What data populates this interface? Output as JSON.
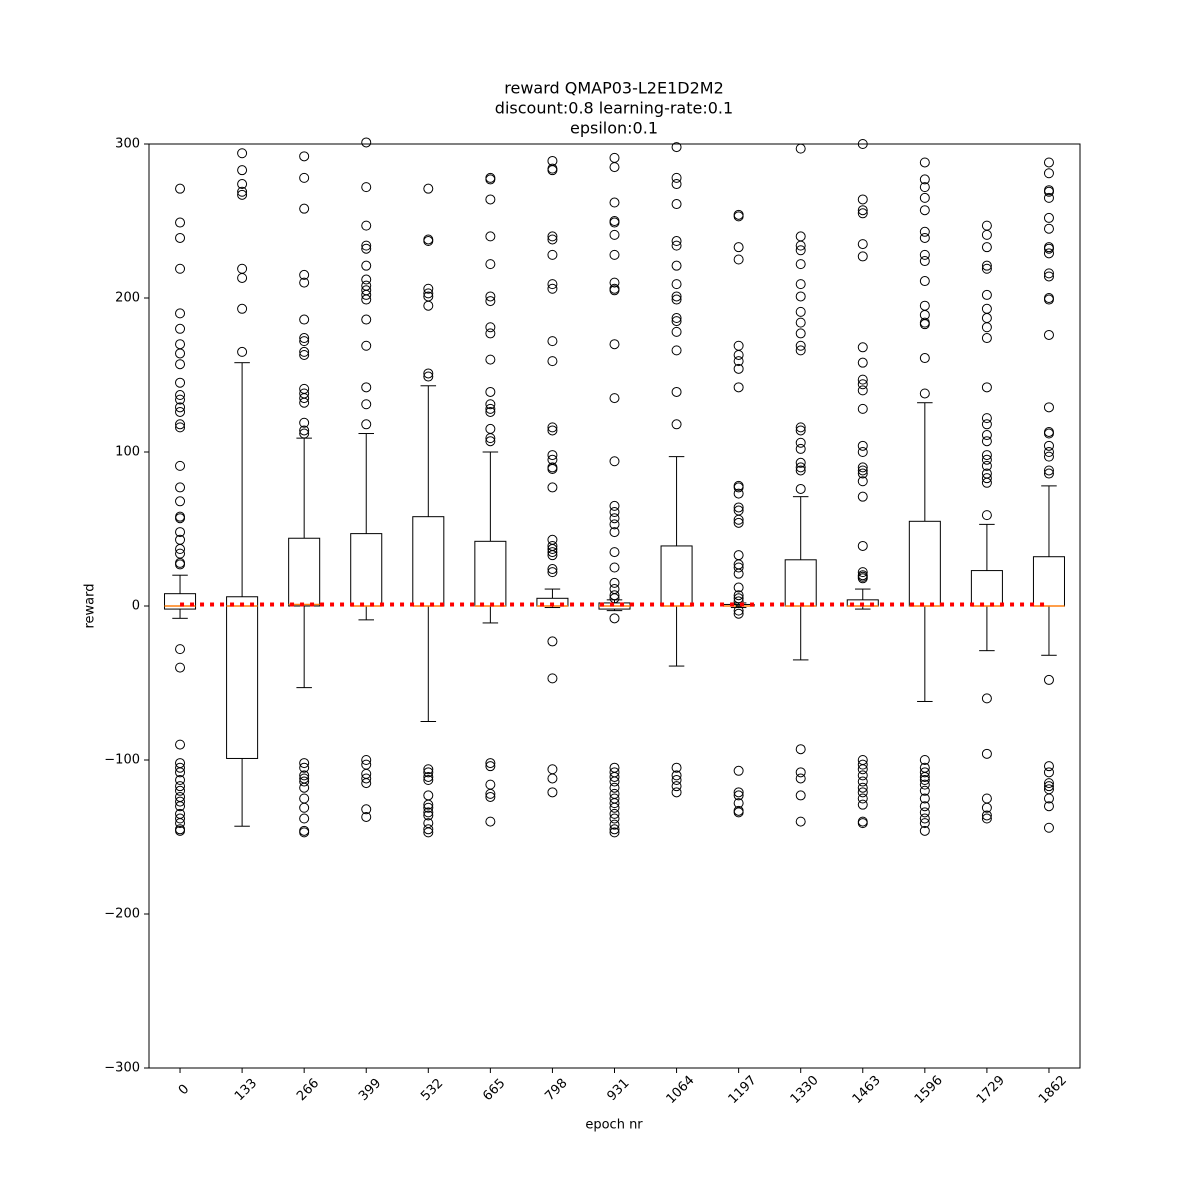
{
  "chart_data": {
    "type": "box",
    "title": [
      "reward QMAP03-L2E1D2M2",
      "discount:0.8 learning-rate:0.1",
      "epsilon:0.1"
    ],
    "x_label": "epoch nr",
    "y_label": "reward",
    "categories": [
      "0",
      "133",
      "266",
      "399",
      "532",
      "665",
      "798",
      "931",
      "1064",
      "1197",
      "1330",
      "1463",
      "1596",
      "1729",
      "1862"
    ],
    "ylim": [
      -300,
      300
    ],
    "yticks": [
      {
        "value": -300,
        "label": "−300"
      },
      {
        "value": -200,
        "label": "−200"
      },
      {
        "value": -100,
        "label": "−100"
      },
      0,
      100,
      200,
      300
    ],
    "box_color": "#000000",
    "median_color": "#ff7f0e",
    "boxes": [
      {
        "whisker_low": -8,
        "q1": -2,
        "median": 0,
        "q3": 8,
        "whisker_high": 20,
        "outliers": [
          271,
          249,
          239,
          219,
          190,
          180,
          170,
          164,
          157,
          145,
          137,
          134,
          129,
          126,
          118,
          116,
          91,
          77,
          68,
          58,
          57,
          48,
          43,
          37,
          34,
          28,
          27,
          -28,
          -40,
          -90,
          -102,
          -105,
          -108,
          -113,
          -117,
          -120,
          -124,
          -127,
          -130,
          -135,
          -138,
          -141,
          -145,
          -146
        ]
      },
      {
        "whisker_low": -143,
        "q1": -99,
        "median": 0,
        "q3": 6,
        "whisker_high": 158,
        "outliers": [
          294,
          283,
          274,
          269,
          267,
          219,
          213,
          193,
          165
        ]
      },
      {
        "whisker_low": -53,
        "q1": 0,
        "median": 1,
        "q3": 44,
        "whisker_high": 109,
        "outliers": [
          292,
          278,
          258,
          215,
          210,
          186,
          174,
          172,
          165,
          163,
          141,
          138,
          135,
          132,
          119,
          114,
          112,
          -102,
          -105,
          -110,
          -112,
          -114,
          -118,
          -125,
          -131,
          -138,
          -146,
          -147
        ]
      },
      {
        "whisker_low": -9,
        "q1": 0,
        "median": 0,
        "q3": 47,
        "whisker_high": 112,
        "outliers": [
          301,
          272,
          247,
          234,
          232,
          221,
          212,
          208,
          205,
          202,
          199,
          186,
          169,
          142,
          131,
          118,
          -100,
          -103,
          -109,
          -112,
          -115,
          -132,
          -137
        ]
      },
      {
        "whisker_low": -75,
        "q1": 0,
        "median": 0,
        "q3": 58,
        "whisker_high": 143,
        "outliers": [
          271,
          238,
          237,
          206,
          203,
          201,
          195,
          151,
          149,
          -106,
          -108,
          -111,
          -113,
          -123,
          -129,
          -131,
          -134,
          -136,
          -141,
          -145,
          -147
        ]
      },
      {
        "whisker_low": -11,
        "q1": 0,
        "median": 0,
        "q3": 42,
        "whisker_high": 100,
        "outliers": [
          278,
          277,
          264,
          240,
          222,
          201,
          198,
          181,
          177,
          160,
          139,
          131,
          128,
          126,
          115,
          109,
          107,
          -102,
          -104,
          -116,
          -122,
          -124,
          -140
        ]
      },
      {
        "whisker_low": -1,
        "q1": 0,
        "median": 0,
        "q3": 5,
        "whisker_high": 11,
        "outliers": [
          289,
          284,
          283,
          240,
          238,
          228,
          209,
          206,
          172,
          159,
          116,
          114,
          98,
          95,
          90,
          89,
          77,
          43,
          39,
          37,
          35,
          33,
          24,
          22,
          -23,
          -47,
          -106,
          -112,
          -121
        ]
      },
      {
        "whisker_low": -3,
        "q1": -2,
        "median": 0,
        "q3": 2,
        "whisker_high": 4,
        "outliers": [
          291,
          285,
          262,
          250,
          249,
          241,
          228,
          210,
          206,
          205,
          170,
          135,
          94,
          65,
          61,
          57,
          53,
          48,
          35,
          25,
          15,
          11,
          7,
          5,
          -8,
          -105,
          -108,
          -111,
          -114,
          -118,
          -122,
          -125,
          -128,
          -131,
          -135,
          -138,
          -142,
          -145,
          -147
        ]
      },
      {
        "whisker_low": -39,
        "q1": 0,
        "median": 0,
        "q3": 39,
        "whisker_high": 97,
        "outliers": [
          298,
          278,
          274,
          261,
          237,
          234,
          221,
          209,
          201,
          199,
          187,
          185,
          178,
          166,
          139,
          118,
          -105,
          -110,
          -113,
          -117,
          -121
        ]
      },
      {
        "whisker_low": -1,
        "q1": 0,
        "median": 0,
        "q3": 1,
        "whisker_high": 2,
        "outliers": [
          254,
          253,
          233,
          225,
          169,
          163,
          159,
          154,
          142,
          78,
          77,
          73,
          64,
          62,
          56,
          54,
          33,
          27,
          25,
          21,
          12,
          7,
          5,
          3,
          -3,
          -5,
          -107,
          -121,
          -123,
          -128,
          -133,
          -134
        ]
      },
      {
        "whisker_low": -35,
        "q1": 0,
        "median": 0,
        "q3": 30,
        "whisker_high": 71,
        "outliers": [
          297,
          240,
          234,
          231,
          222,
          209,
          201,
          191,
          184,
          177,
          169,
          166,
          116,
          114,
          106,
          102,
          93,
          90,
          88,
          76,
          -93,
          -108,
          -112,
          -123,
          -140
        ]
      },
      {
        "whisker_low": -2,
        "q1": 0,
        "median": 0,
        "q3": 4,
        "whisker_high": 11,
        "outliers": [
          300,
          264,
          257,
          255,
          235,
          227,
          168,
          158,
          147,
          144,
          140,
          128,
          104,
          100,
          90,
          88,
          86,
          81,
          71,
          39,
          22,
          20,
          19,
          18,
          -100,
          -103,
          -106,
          -110,
          -114,
          -118,
          -121,
          -125,
          -129,
          -140,
          -141
        ]
      },
      {
        "whisker_low": -62,
        "q1": 0,
        "median": 0,
        "q3": 55,
        "whisker_high": 132,
        "outliers": [
          288,
          277,
          272,
          265,
          257,
          243,
          239,
          228,
          224,
          211,
          195,
          189,
          184,
          183,
          161,
          138,
          -100,
          -105,
          -108,
          -111,
          -113,
          -116,
          -120,
          -125,
          -130,
          -134,
          -138,
          -141,
          -146
        ]
      },
      {
        "whisker_low": -29,
        "q1": 0,
        "median": 0,
        "q3": 23,
        "whisker_high": 53,
        "outliers": [
          247,
          241,
          233,
          221,
          219,
          202,
          193,
          187,
          181,
          174,
          142,
          122,
          118,
          111,
          107,
          98,
          95,
          91,
          86,
          83,
          80,
          59,
          -60,
          -96,
          -125,
          -131,
          -136,
          -138
        ]
      },
      {
        "whisker_low": -32,
        "q1": 0,
        "median": 0,
        "q3": 32,
        "whisker_high": 78,
        "outliers": [
          288,
          281,
          270,
          269,
          265,
          252,
          245,
          233,
          232,
          229,
          216,
          214,
          200,
          199,
          176,
          129,
          113,
          112,
          104,
          100,
          97,
          88,
          86,
          -48,
          -104,
          -108,
          -115,
          -117,
          -119,
          -125,
          -130,
          -144
        ]
      }
    ],
    "line": {
      "color": "#ff0000",
      "values": [
        1,
        1,
        1,
        1,
        1,
        1,
        1,
        1,
        1,
        1,
        1,
        1,
        1,
        1,
        1
      ]
    }
  }
}
